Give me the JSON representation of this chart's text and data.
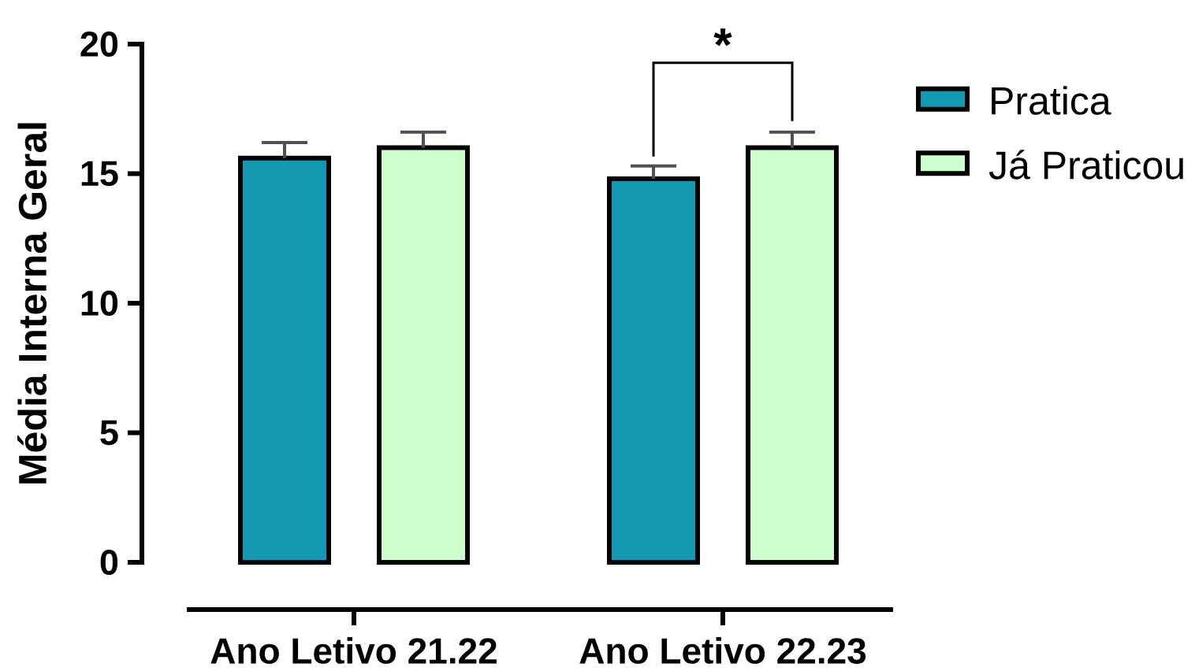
{
  "chart_data": {
    "type": "bar",
    "ylabel": "Média Interna Geral",
    "categories": [
      "Ano Letivo 21.22",
      "Ano Letivo 22.23"
    ],
    "series": [
      {
        "name": "Pratica",
        "color": "#1399b2",
        "values": [
          15.6,
          14.8
        ],
        "errors": [
          0.6,
          0.5
        ]
      },
      {
        "name": "Já Praticou",
        "color": "#ccffcc",
        "values": [
          16.0,
          16.0
        ],
        "errors": [
          0.6,
          0.6
        ]
      }
    ],
    "ylim": [
      0,
      20
    ],
    "yticks": [
      0,
      5,
      10,
      15,
      20
    ],
    "legend": "right",
    "annotations": [
      "*"
    ]
  }
}
